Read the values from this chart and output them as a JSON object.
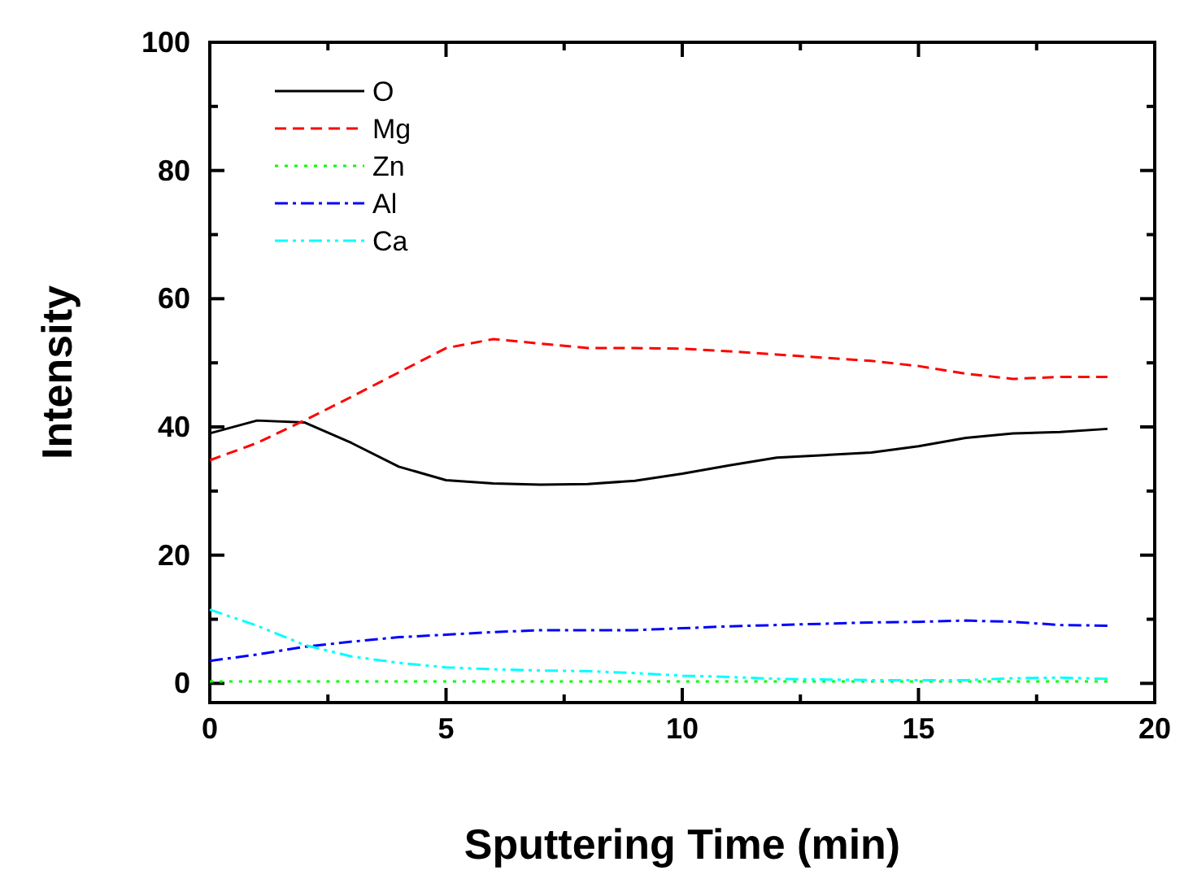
{
  "chart_data": {
    "type": "line",
    "xlabel": "Sputtering Time (min)",
    "ylabel": "Intensity",
    "x": [
      0,
      1,
      2,
      3,
      4,
      5,
      6,
      7,
      8,
      9,
      10,
      11,
      12,
      13,
      14,
      15,
      16,
      17,
      18,
      19
    ],
    "xlim": [
      0,
      20
    ],
    "xticks": [
      0,
      {
        "value": 2.5,
        "label": null
      },
      5,
      {
        "value": 7.5,
        "label": null
      },
      10,
      {
        "value": 12.5,
        "label": null
      },
      15,
      {
        "value": 17.5,
        "label": null
      },
      20
    ],
    "ylim": [
      -3,
      100
    ],
    "yticks": [
      0,
      {
        "value": 10,
        "label": null
      },
      20,
      {
        "value": 30,
        "label": null
      },
      40,
      {
        "value": 50,
        "label": null
      },
      60,
      {
        "value": 70,
        "label": null
      },
      80,
      {
        "value": 90,
        "label": null
      },
      100
    ],
    "grid": false,
    "legend": "top left",
    "marker": "none",
    "series": [
      {
        "name": "O",
        "color": "#000000",
        "line_style": "solid",
        "values": [
          39,
          41,
          40.7,
          37.5,
          33.8,
          31.7,
          31.2,
          31,
          31.1,
          31.6,
          32.7,
          34,
          35.2,
          35.6,
          36,
          37,
          38.3,
          39,
          39.2,
          39.7
        ]
      },
      {
        "name": "Mg",
        "color": "#ff0000",
        "line_style": "dashed",
        "values": [
          34.8,
          37.5,
          41,
          44.7,
          48.5,
          52.3,
          53.7,
          53,
          52.3,
          52.3,
          52.2,
          51.8,
          51.3,
          50.8,
          50.3,
          49.5,
          48.3,
          47.5,
          47.8,
          47.8
        ]
      },
      {
        "name": "Zn",
        "color": "#00ff00",
        "line_style": "dotted",
        "values": [
          0.3,
          0.3,
          0.3,
          0.3,
          0.3,
          0.3,
          0.3,
          0.3,
          0.3,
          0.3,
          0.3,
          0.3,
          0.3,
          0.3,
          0.3,
          0.3,
          0.3,
          0.3,
          0.3,
          0.3
        ]
      },
      {
        "name": "Al",
        "color": "#0000ff",
        "line_style": "dashdot",
        "values": [
          3.5,
          4.5,
          5.7,
          6.5,
          7.2,
          7.6,
          8,
          8.3,
          8.3,
          8.3,
          8.6,
          8.9,
          9.1,
          9.3,
          9.5,
          9.6,
          9.8,
          9.6,
          9.1,
          9
        ]
      },
      {
        "name": "Ca",
        "color": "#00ffff",
        "line_style": "dashdotdot",
        "values": [
          11.5,
          9,
          6,
          4.2,
          3.2,
          2.5,
          2.2,
          2,
          1.9,
          1.6,
          1.2,
          1,
          0.7,
          0.6,
          0.5,
          0.5,
          0.5,
          0.8,
          0.9,
          0.7
        ]
      }
    ]
  }
}
